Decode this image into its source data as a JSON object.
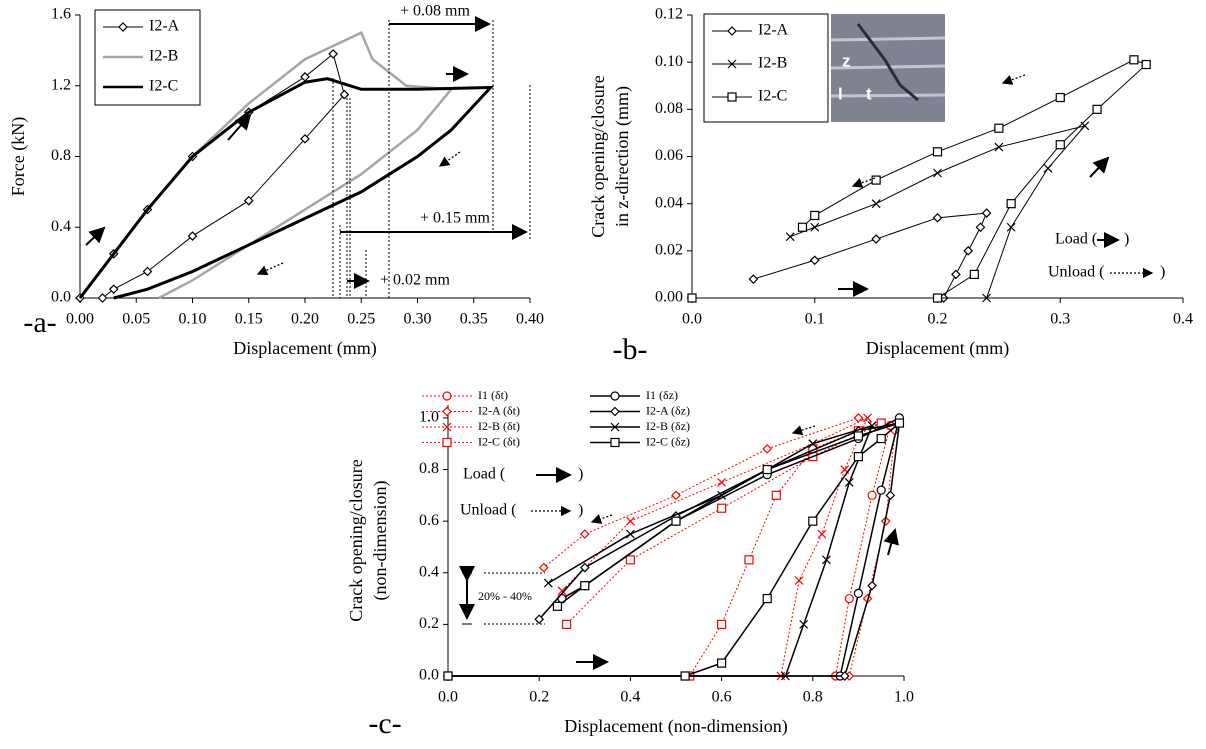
{
  "chart_data": [
    {
      "type": "line",
      "panel_label": "-a-",
      "x_label": "Displacement (mm)",
      "y_label": [
        "Force (kN)"
      ],
      "xlim": [
        0,
        0.4
      ],
      "ylim": [
        0,
        1.6
      ],
      "xticks": [
        {
          "value": 0,
          "label": "0.00"
        },
        0.05,
        {
          "value": 0.1,
          "label": "0.10"
        },
        0.15,
        {
          "value": 0.2,
          "label": "0.20"
        },
        0.25,
        {
          "value": 0.3,
          "label": "0.30"
        },
        0.35,
        {
          "value": 0.4,
          "label": "0.40"
        }
      ],
      "yticks": [
        {
          "value": 0,
          "label": "0.0"
        },
        0.4,
        0.8,
        1.2,
        1.6
      ],
      "legend": "upper left",
      "annotations": [
        "+ 0.08 mm",
        "+ 0.15 mm",
        "+ 0.02 mm"
      ],
      "series": [
        {
          "name": "I2-A",
          "color": "#000000",
          "marker": "diamond",
          "dash": false,
          "width": 1,
          "x": [
            0,
            0.03,
            0.06,
            0.1,
            0.15,
            0.2,
            0.225,
            0.235,
            0.2,
            0.15,
            0.1,
            0.06,
            0.03,
            0.02
          ],
          "values": [
            0,
            0.25,
            0.5,
            0.8,
            1.05,
            1.25,
            1.38,
            1.15,
            0.9,
            0.55,
            0.35,
            0.15,
            0.05,
            0
          ]
        },
        {
          "name": "I2-B",
          "color": "#a6a6a6",
          "marker": "none",
          "dash": false,
          "width": 2.5,
          "x": [
            0,
            0.03,
            0.06,
            0.1,
            0.15,
            0.2,
            0.25,
            0.26,
            0.29,
            0.33,
            0.3,
            0.25,
            0.2,
            0.15,
            0.1,
            0.07
          ],
          "values": [
            0,
            0.25,
            0.5,
            0.8,
            1.1,
            1.35,
            1.5,
            1.35,
            1.2,
            1.18,
            0.95,
            0.7,
            0.5,
            0.3,
            0.1,
            0
          ]
        },
        {
          "name": "I2-C",
          "color": "#000000",
          "marker": "none",
          "dash": false,
          "width": 3,
          "x": [
            0,
            0.03,
            0.06,
            0.1,
            0.15,
            0.2,
            0.22,
            0.25,
            0.3,
            0.365,
            0.33,
            0.3,
            0.25,
            0.2,
            0.15,
            0.1,
            0.06,
            0.03
          ],
          "values": [
            0,
            0.25,
            0.5,
            0.8,
            1.05,
            1.22,
            1.24,
            1.18,
            1.18,
            1.19,
            0.95,
            0.8,
            0.6,
            0.45,
            0.3,
            0.15,
            0.05,
            0
          ]
        }
      ]
    },
    {
      "type": "line",
      "panel_label": "-b-",
      "x_label": "Displacement (mm)",
      "y_label": [
        "Crack opening/closure",
        "in z-direction (mm)"
      ],
      "xlim": [
        0,
        0.4
      ],
      "ylim": [
        0,
        0.12
      ],
      "xticks": [
        {
          "value": 0,
          "label": "0.0"
        },
        0.1,
        0.2,
        0.3,
        0.4
      ],
      "yticks": [
        {
          "value": 0,
          "label": "0.00"
        },
        0.02,
        0.04,
        0.06,
        0.08,
        {
          "value": 0.1,
          "label": "0.10"
        },
        0.12
      ],
      "legend": "upper left",
      "annotations": [
        "Load (",
        ")",
        "Unload (",
        ")"
      ],
      "inset_labels": [
        "z",
        "l",
        "t"
      ],
      "series": [
        {
          "name": "I2-A",
          "color": "#000000",
          "marker": "diamond",
          "dash": false,
          "width": 1,
          "x": [
            0,
            0.205,
            0.215,
            0.225,
            0.235,
            0.24,
            0.2,
            0.15,
            0.1,
            0.05
          ],
          "values": [
            0,
            0,
            0.01,
            0.02,
            0.03,
            0.036,
            0.034,
            0.025,
            0.016,
            0.008
          ]
        },
        {
          "name": "I2-B",
          "color": "#000000",
          "marker": "x",
          "dash": false,
          "width": 1,
          "x": [
            0,
            0.24,
            0.26,
            0.29,
            0.32,
            0.25,
            0.2,
            0.15,
            0.1,
            0.08
          ],
          "values": [
            0,
            0,
            0.03,
            0.055,
            0.073,
            0.064,
            0.053,
            0.04,
            0.03,
            0.026
          ]
        },
        {
          "name": "I2-C",
          "color": "#000000",
          "marker": "square",
          "dash": false,
          "width": 1,
          "x": [
            0,
            0.2,
            0.23,
            0.26,
            0.3,
            0.33,
            0.37,
            0.36,
            0.3,
            0.25,
            0.2,
            0.15,
            0.1,
            0.09
          ],
          "values": [
            0,
            0,
            0.01,
            0.04,
            0.065,
            0.08,
            0.099,
            0.101,
            0.085,
            0.072,
            0.062,
            0.05,
            0.035,
            0.03
          ]
        }
      ]
    },
    {
      "type": "line",
      "panel_label": "-c-",
      "x_label": "Displacement (non-dimension)",
      "y_label": [
        "Crack opening/closure",
        "(non-dimension)"
      ],
      "xlim": [
        0,
        1
      ],
      "ylim": [
        0,
        1.05
      ],
      "xticks": [
        {
          "value": 0,
          "label": "0.0"
        },
        0.2,
        0.4,
        0.6,
        0.8,
        {
          "value": 1,
          "label": "1.0"
        }
      ],
      "yticks": [
        {
          "value": 0,
          "label": "0.0"
        },
        0.2,
        0.4,
        0.6,
        0.8,
        {
          "value": 1,
          "label": "1.0"
        }
      ],
      "legend": "upper left",
      "annotations": [
        "20% - 40%",
        "Load (",
        ")",
        "Unload (",
        ")"
      ],
      "series": [
        {
          "name": "I1 (δt)",
          "color": "#ff0000",
          "marker": "circle",
          "dash": true,
          "width": 1,
          "x": [
            0,
            0.85,
            0.88,
            0.93,
            0.97,
            0.9,
            0.7,
            0.5,
            0.3,
            0.25
          ],
          "values": [
            0,
            0,
            0.3,
            0.7,
            0.97,
            0.95,
            0.8,
            0.6,
            0.35,
            0.3
          ]
        },
        {
          "name": "I2-A (δt)",
          "color": "#ff0000",
          "marker": "diamond",
          "dash": true,
          "width": 1,
          "x": [
            0,
            0.88,
            0.92,
            0.96,
            0.98,
            0.9,
            0.7,
            0.5,
            0.3,
            0.21
          ],
          "values": [
            0,
            0,
            0.3,
            0.6,
            0.95,
            1.0,
            0.88,
            0.7,
            0.55,
            0.42
          ]
        },
        {
          "name": "I2-B (δt)",
          "color": "#ff0000",
          "marker": "x",
          "dash": true,
          "width": 1,
          "x": [
            0,
            0.73,
            0.77,
            0.82,
            0.87,
            0.92,
            0.8,
            0.6,
            0.4,
            0.25
          ],
          "values": [
            0,
            0,
            0.37,
            0.55,
            0.8,
            1.0,
            0.9,
            0.75,
            0.6,
            0.33
          ]
        },
        {
          "name": "I2-C (δt)",
          "color": "#ff0000",
          "marker": "square",
          "dash": true,
          "width": 1,
          "x": [
            0,
            0.53,
            0.6,
            0.66,
            0.72,
            0.8,
            0.9,
            0.95,
            0.8,
            0.6,
            0.4,
            0.26
          ],
          "values": [
            0,
            0,
            0.2,
            0.45,
            0.7,
            0.88,
            0.95,
            0.98,
            0.85,
            0.65,
            0.45,
            0.2
          ]
        },
        {
          "name": "I1 (δz)",
          "color": "#000000",
          "marker": "circle",
          "dash": false,
          "width": 1.5,
          "x": [
            0,
            0.86,
            0.9,
            0.95,
            0.99,
            0.9,
            0.7,
            0.5,
            0.3,
            0.25
          ],
          "values": [
            0,
            0,
            0.32,
            0.72,
            1.0,
            0.92,
            0.78,
            0.6,
            0.35,
            0.3
          ]
        },
        {
          "name": "I2-A (δz)",
          "color": "#000000",
          "marker": "diamond",
          "dash": false,
          "width": 1.5,
          "x": [
            0,
            0.87,
            0.93,
            0.97,
            0.99,
            0.9,
            0.7,
            0.5,
            0.3,
            0.2
          ],
          "values": [
            0,
            0,
            0.35,
            0.7,
            0.98,
            0.95,
            0.8,
            0.62,
            0.42,
            0.22
          ]
        },
        {
          "name": "I2-B (δz)",
          "color": "#000000",
          "marker": "x",
          "dash": false,
          "width": 1.5,
          "x": [
            0,
            0.74,
            0.78,
            0.83,
            0.88,
            0.93,
            0.8,
            0.6,
            0.4,
            0.22
          ],
          "values": [
            0,
            0,
            0.2,
            0.45,
            0.75,
            0.97,
            0.9,
            0.7,
            0.55,
            0.36
          ]
        },
        {
          "name": "I2-C (δz)",
          "color": "#000000",
          "marker": "square",
          "dash": false,
          "width": 1.5,
          "x": [
            0,
            0.52,
            0.6,
            0.7,
            0.8,
            0.9,
            0.95,
            0.99,
            0.9,
            0.7,
            0.5,
            0.3,
            0.24
          ],
          "values": [
            0,
            0,
            0.05,
            0.3,
            0.6,
            0.85,
            0.92,
            0.98,
            0.93,
            0.8,
            0.6,
            0.35,
            0.27
          ]
        }
      ]
    }
  ]
}
